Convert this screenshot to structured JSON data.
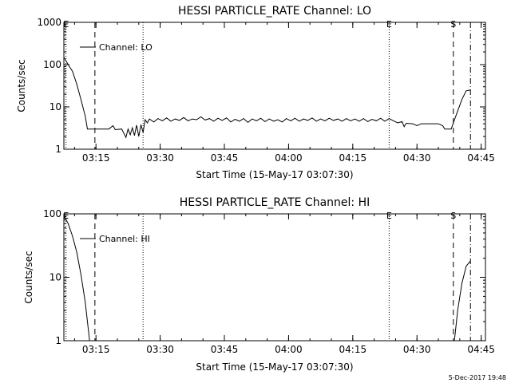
{
  "footer_text": "5-Dec-2017 19:48",
  "colors": {
    "background": "#ffffff",
    "ink": "#000000"
  },
  "chart_data": [
    {
      "type": "line",
      "title": "HESSI PARTICLE_RATE Channel: LO",
      "xlabel": "Start Time (15-May-17 03:07:30)",
      "ylabel": "Counts/sec",
      "yscale": "log",
      "xlim": [
        "03:07:30",
        "04:46:00"
      ],
      "ylim": [
        1,
        1000
      ],
      "x_ticks": [
        "03:15",
        "03:30",
        "03:45",
        "04:00",
        "04:15",
        "04:30",
        "04:45"
      ],
      "y_ticks": [
        "1",
        "10",
        "100",
        "1000"
      ],
      "legend": {
        "label": "Channel: LO",
        "placement": "top-left"
      },
      "markers": [
        {
          "label": "E",
          "time": "03:08:00",
          "style": "dotted"
        },
        {
          "label": "",
          "time": "03:14:45",
          "style": "dashed"
        },
        {
          "label": "",
          "time": "03:26:00",
          "style": "dotted"
        },
        {
          "label": "E",
          "time": "04:23:30",
          "style": "dotted"
        },
        {
          "label": "S",
          "time": "04:38:30",
          "style": "dashed"
        },
        {
          "label": "",
          "time": "04:42:30",
          "style": "dashdot"
        }
      ],
      "series": [
        {
          "name": "Channel: LO",
          "points": [
            [
              "03:07:30",
              150
            ],
            [
              "03:08:30",
              100
            ],
            [
              "03:09:30",
              70
            ],
            [
              "03:10:30",
              35
            ],
            [
              "03:11:30",
              15
            ],
            [
              "03:12:30",
              6
            ],
            [
              "03:13:00",
              3
            ],
            [
              "03:14:00",
              3
            ],
            [
              "03:16:00",
              3
            ],
            [
              "03:18:00",
              3
            ],
            [
              "03:19:00",
              3.6
            ],
            [
              "03:19:30",
              2.9
            ],
            [
              "03:21:00",
              3
            ],
            [
              "03:22:00",
              1.9
            ],
            [
              "03:22:30",
              3
            ],
            [
              "03:23:00",
              2.2
            ],
            [
              "03:23:30",
              3.2
            ],
            [
              "03:24:00",
              2.1
            ],
            [
              "03:24:30",
              3.7
            ],
            [
              "03:25:00",
              2
            ],
            [
              "03:25:30",
              3.8
            ],
            [
              "03:26:00",
              2.5
            ],
            [
              "03:26:30",
              5
            ],
            [
              "03:27:00",
              4.2
            ],
            [
              "03:27:30",
              5.2
            ],
            [
              "03:28:30",
              4.4
            ],
            [
              "03:29:30",
              5.3
            ],
            [
              "03:30:30",
              4.7
            ],
            [
              "03:31:30",
              5.5
            ],
            [
              "03:32:30",
              4.6
            ],
            [
              "03:33:30",
              5.2
            ],
            [
              "03:34:30",
              4.8
            ],
            [
              "03:35:30",
              5.6
            ],
            [
              "03:36:30",
              4.7
            ],
            [
              "03:37:30",
              5.2
            ],
            [
              "03:38:30",
              5
            ],
            [
              "03:39:30",
              5.8
            ],
            [
              "03:40:30",
              4.9
            ],
            [
              "03:41:30",
              5.3
            ],
            [
              "03:42:30",
              4.6
            ],
            [
              "03:43:30",
              5.4
            ],
            [
              "03:44:30",
              4.8
            ],
            [
              "03:45:30",
              5.5
            ],
            [
              "03:46:30",
              4.4
            ],
            [
              "03:47:30",
              5.1
            ],
            [
              "03:48:30",
              4.6
            ],
            [
              "03:49:30",
              5.3
            ],
            [
              "03:50:30",
              4.3
            ],
            [
              "03:51:30",
              5.2
            ],
            [
              "03:52:30",
              4.7
            ],
            [
              "03:53:30",
              5.4
            ],
            [
              "03:54:30",
              4.5
            ],
            [
              "03:55:30",
              5.2
            ],
            [
              "03:56:30",
              4.6
            ],
            [
              "03:57:30",
              5
            ],
            [
              "03:58:30",
              4.4
            ],
            [
              "03:59:30",
              5.3
            ],
            [
              "04:00:30",
              4.7
            ],
            [
              "04:01:30",
              5.4
            ],
            [
              "04:02:30",
              4.6
            ],
            [
              "04:03:30",
              5.2
            ],
            [
              "04:04:30",
              4.8
            ],
            [
              "04:05:30",
              5.5
            ],
            [
              "04:06:30",
              4.6
            ],
            [
              "04:07:30",
              5.2
            ],
            [
              "04:08:30",
              4.7
            ],
            [
              "04:09:30",
              5.4
            ],
            [
              "04:10:30",
              4.8
            ],
            [
              "04:11:30",
              5.2
            ],
            [
              "04:12:30",
              4.6
            ],
            [
              "04:13:30",
              5.3
            ],
            [
              "04:14:30",
              4.7
            ],
            [
              "04:15:30",
              5.2
            ],
            [
              "04:16:30",
              4.6
            ],
            [
              "04:17:30",
              5.3
            ],
            [
              "04:18:30",
              4.5
            ],
            [
              "04:19:30",
              5.1
            ],
            [
              "04:20:30",
              4.7
            ],
            [
              "04:21:30",
              5.4
            ],
            [
              "04:22:30",
              4.6
            ],
            [
              "04:23:30",
              5.3
            ],
            [
              "04:24:30",
              4.7
            ],
            [
              "04:25:30",
              4.2
            ],
            [
              "04:26:30",
              4.5
            ],
            [
              "04:27:00",
              3.4
            ],
            [
              "04:27:30",
              4.1
            ],
            [
              "04:29:00",
              4
            ],
            [
              "04:30:00",
              3.6
            ],
            [
              "04:31:00",
              4
            ],
            [
              "04:33:00",
              4
            ],
            [
              "04:35:00",
              4
            ],
            [
              "04:36:00",
              3.6
            ],
            [
              "04:36:30",
              3
            ],
            [
              "04:38:00",
              3
            ],
            [
              "04:38:30",
              4.2
            ],
            [
              "04:39:30",
              8
            ],
            [
              "04:40:30",
              15
            ],
            [
              "04:41:30",
              24
            ],
            [
              "04:42:30",
              25
            ]
          ]
        }
      ]
    },
    {
      "type": "line",
      "title": "HESSI PARTICLE_RATE Channel: HI",
      "xlabel": "Start Time (15-May-17 03:07:30)",
      "ylabel": "Counts/sec",
      "yscale": "log",
      "xlim": [
        "03:07:30",
        "04:46:00"
      ],
      "ylim": [
        1,
        100
      ],
      "x_ticks": [
        "03:15",
        "03:30",
        "03:45",
        "04:00",
        "04:15",
        "04:30",
        "04:45"
      ],
      "y_ticks": [
        "1",
        "10",
        "100"
      ],
      "legend": {
        "label": "Channel: HI",
        "placement": "top-left"
      },
      "markers": [
        {
          "label": "E",
          "time": "03:08:00",
          "style": "dotted"
        },
        {
          "label": "",
          "time": "03:14:45",
          "style": "dashed"
        },
        {
          "label": "",
          "time": "03:26:00",
          "style": "dotted"
        },
        {
          "label": "E",
          "time": "04:23:30",
          "style": "dotted"
        },
        {
          "label": "S",
          "time": "04:38:30",
          "style": "dashed"
        },
        {
          "label": "",
          "time": "04:42:30",
          "style": "dashdot"
        }
      ],
      "series": [
        {
          "name": "Channel: HI",
          "points": [
            [
              "03:07:30",
              95
            ],
            [
              "03:08:30",
              70
            ],
            [
              "03:09:30",
              45
            ],
            [
              "03:10:30",
              25
            ],
            [
              "03:11:30",
              11
            ],
            [
              "03:12:30",
              4
            ],
            [
              "03:13:30",
              1
            ]
          ]
        },
        {
          "name": "Channel: HI",
          "points": [
            [
              "04:38:45",
              1
            ],
            [
              "04:39:30",
              3
            ],
            [
              "04:40:30",
              8
            ],
            [
              "04:41:30",
              15
            ],
            [
              "04:42:30",
              18
            ]
          ]
        }
      ]
    }
  ]
}
